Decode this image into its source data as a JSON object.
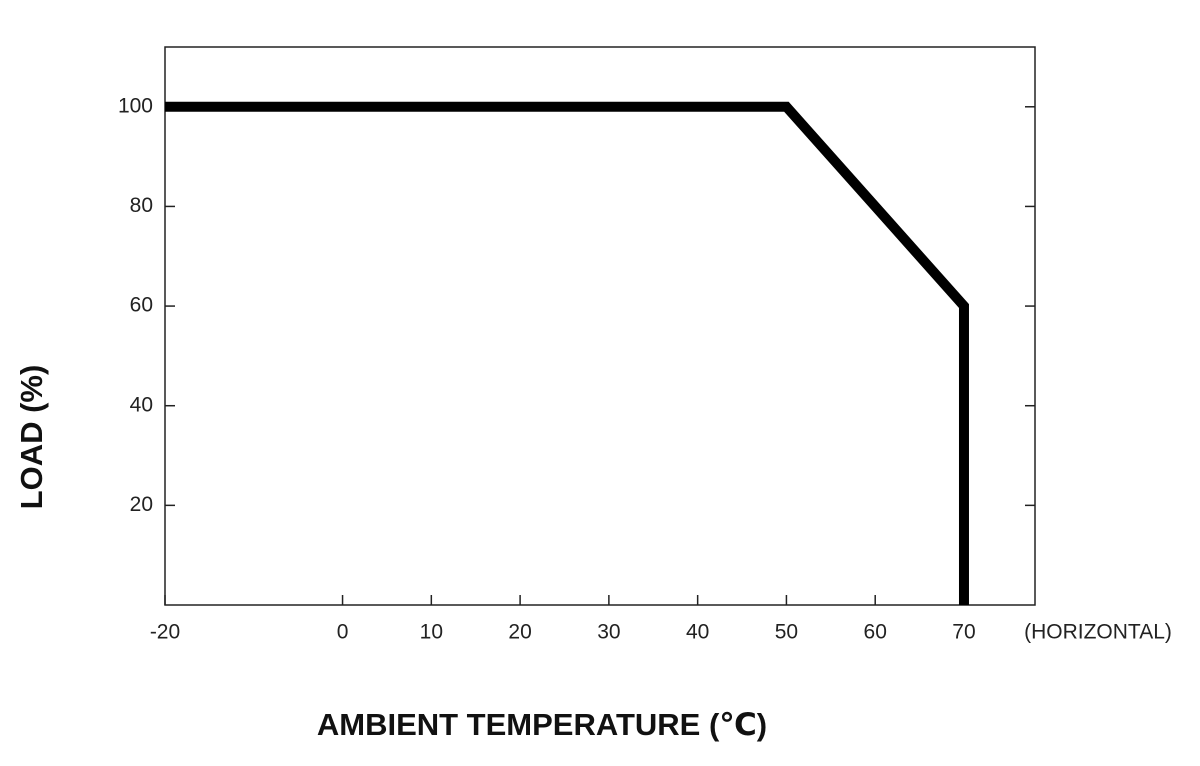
{
  "chart_data": {
    "type": "line",
    "x": [
      -20,
      50,
      70,
      70
    ],
    "series": [
      {
        "name": "Load",
        "color": "#000000",
        "values": [
          100,
          100,
          60,
          0
        ]
      }
    ],
    "xlim": [
      -20,
      78
    ],
    "ylim": [
      0,
      112
    ],
    "xticks": [
      -20,
      0,
      10,
      20,
      30,
      40,
      50,
      60,
      70
    ],
    "yticks": [
      20,
      40,
      60,
      80,
      100
    ],
    "x_label": "AMBIENT TEMPERATURE (℃)",
    "y_label": "LOAD (%)",
    "annotation": "(HORIZONTAL)",
    "grid": false
  }
}
